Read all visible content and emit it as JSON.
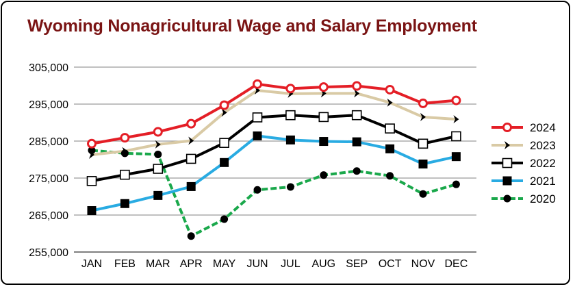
{
  "chart_data": {
    "type": "line",
    "title": "Wyoming Nonagricultural Wage and Salary Employment",
    "xlabel": "",
    "ylabel": "",
    "categories": [
      "JAN",
      "FEB",
      "MAR",
      "APR",
      "MAY",
      "JUN",
      "JUL",
      "AUG",
      "SEP",
      "OCT",
      "NOV",
      "DEC"
    ],
    "ylim": [
      255000,
      305000
    ],
    "yticks": [
      255000,
      265000,
      275000,
      285000,
      295000,
      305000
    ],
    "ytick_labels": [
      "255,000",
      "265,000",
      "275,000",
      "285,000",
      "295,000",
      "305,000"
    ],
    "grid": "horizontal",
    "legend_position": "right",
    "series": [
      {
        "name": "2024",
        "color": "#e41e26",
        "marker": "open-circle",
        "dash": "solid",
        "values": [
          284300,
          285900,
          287500,
          289700,
          294700,
          300400,
          299200,
          299600,
          299900,
          298900,
          295200,
          296000
        ]
      },
      {
        "name": "2023",
        "color": "#d9caa5",
        "marker": "chevron",
        "dash": "solid",
        "values": [
          281300,
          282300,
          284100,
          285100,
          292700,
          298700,
          297800,
          297900,
          297900,
          295400,
          291500,
          290900
        ]
      },
      {
        "name": "2022",
        "color": "#000000",
        "marker": "open-square",
        "dash": "solid",
        "values": [
          274200,
          275900,
          277500,
          280200,
          284500,
          291400,
          292000,
          291500,
          292000,
          288400,
          284300,
          286300
        ]
      },
      {
        "name": "2021",
        "color": "#29abe2",
        "marker": "filled-square",
        "dash": "solid",
        "values": [
          266200,
          268100,
          270300,
          272700,
          279200,
          286400,
          285300,
          284900,
          284800,
          282900,
          278800,
          280800
        ]
      },
      {
        "name": "2020",
        "color": "#1aa84b",
        "marker": "filled-circle",
        "dash": "dashed",
        "values": [
          282500,
          281700,
          281400,
          259300,
          263900,
          271800,
          272600,
          275800,
          276900,
          275600,
          270700,
          273300
        ]
      }
    ]
  }
}
